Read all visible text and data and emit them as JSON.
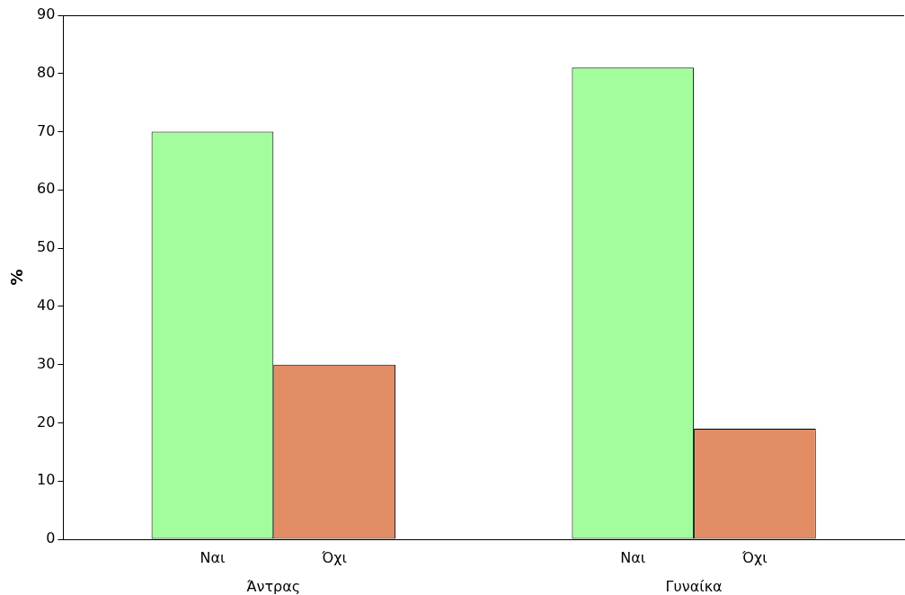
{
  "chart_data": {
    "type": "bar",
    "ylabel": "%",
    "categories": [
      "Άντρας",
      "Γυναίκα"
    ],
    "series": [
      {
        "name": "Ναι",
        "color": "#a3fd9d",
        "values": [
          70,
          81
        ]
      },
      {
        "name": "Όχι",
        "color": "#e38d64",
        "values": [
          30,
          19
        ]
      }
    ],
    "ylim": [
      0,
      90
    ],
    "yticks": [
      0,
      10,
      20,
      30,
      40,
      50,
      60,
      70,
      80,
      90
    ],
    "grid": false,
    "legend": false
  }
}
